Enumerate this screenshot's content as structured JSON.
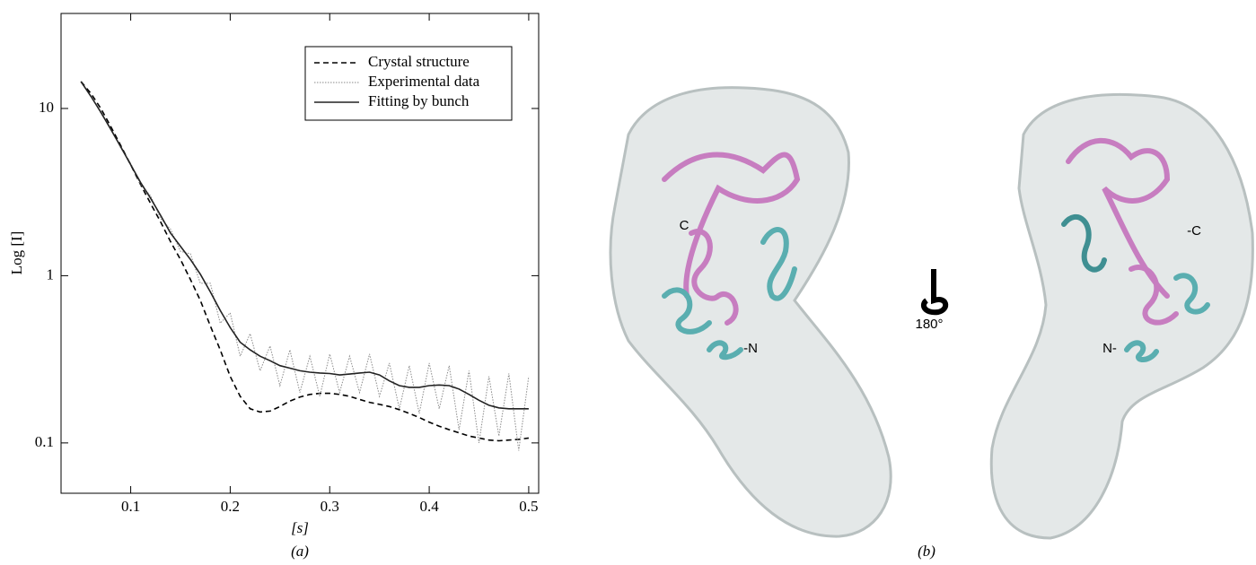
{
  "chart_data": {
    "type": "line",
    "y_axis_label": "Log [I]",
    "x_axis_label": "[s]",
    "panel_label": "(a)",
    "x": [
      0.05,
      0.06,
      0.07,
      0.08,
      0.09,
      0.1,
      0.11,
      0.12,
      0.13,
      0.14,
      0.15,
      0.16,
      0.17,
      0.18,
      0.19,
      0.2,
      0.21,
      0.22,
      0.23,
      0.24,
      0.25,
      0.26,
      0.27,
      0.28,
      0.29,
      0.3,
      0.31,
      0.32,
      0.33,
      0.34,
      0.35,
      0.36,
      0.37,
      0.38,
      0.39,
      0.4,
      0.41,
      0.42,
      0.43,
      0.44,
      0.45,
      0.46,
      0.47,
      0.48,
      0.49,
      0.5
    ],
    "series": [
      {
        "name": "Crystal structure",
        "color": "#000000",
        "dash": "dashed",
        "values": [
          14.5,
          12.3,
          10,
          7.8,
          6,
          4.6,
          3.5,
          2.7,
          2.1,
          1.6,
          1.25,
          0.95,
          0.71,
          0.5,
          0.36,
          0.25,
          0.19,
          0.16,
          0.153,
          0.155,
          0.165,
          0.178,
          0.188,
          0.195,
          0.198,
          0.198,
          0.195,
          0.19,
          0.182,
          0.175,
          0.17,
          0.165,
          0.158,
          0.15,
          0.142,
          0.133,
          0.126,
          0.12,
          0.115,
          0.11,
          0.107,
          0.104,
          0.103,
          0.104,
          0.105,
          0.107
        ]
      },
      {
        "name": "Experimental data",
        "color": "#8a8a8a",
        "dash": "dotted",
        "values": [
          14.3,
          11.9,
          9.4,
          7.6,
          5.8,
          4.7,
          3.5,
          3.0,
          2.2,
          1.9,
          1.4,
          1.35,
          0.9,
          0.9,
          0.52,
          0.6,
          0.33,
          0.45,
          0.27,
          0.38,
          0.22,
          0.36,
          0.2,
          0.33,
          0.19,
          0.34,
          0.2,
          0.33,
          0.2,
          0.34,
          0.19,
          0.3,
          0.16,
          0.29,
          0.15,
          0.3,
          0.16,
          0.29,
          0.12,
          0.27,
          0.1,
          0.25,
          0.11,
          0.26,
          0.09,
          0.25
        ]
      },
      {
        "name": "Fitting by bunch",
        "color": "#222222",
        "dash": "solid",
        "values": [
          14.5,
          11.8,
          9.5,
          7.5,
          5.9,
          4.6,
          3.6,
          2.9,
          2.3,
          1.8,
          1.5,
          1.25,
          1.02,
          0.8,
          0.62,
          0.49,
          0.4,
          0.36,
          0.33,
          0.31,
          0.29,
          0.28,
          0.27,
          0.265,
          0.262,
          0.26,
          0.255,
          0.258,
          0.262,
          0.265,
          0.255,
          0.235,
          0.22,
          0.215,
          0.215,
          0.22,
          0.222,
          0.22,
          0.21,
          0.195,
          0.18,
          0.168,
          0.162,
          0.16,
          0.16,
          0.16
        ]
      }
    ],
    "xlim": [
      0.03,
      0.51
    ],
    "xticks": [
      0.1,
      0.2,
      0.3,
      0.4,
      0.5
    ],
    "ylim": [
      0.05,
      37
    ],
    "yticks": [
      0.1,
      1,
      10
    ],
    "log_y": true,
    "legend": "upper-right"
  },
  "figure_b": {
    "panel_label": "(b)",
    "left_c": "C",
    "left_n": "-N",
    "rotation": "180°",
    "right_n": "N-",
    "right_c": "-C"
  }
}
